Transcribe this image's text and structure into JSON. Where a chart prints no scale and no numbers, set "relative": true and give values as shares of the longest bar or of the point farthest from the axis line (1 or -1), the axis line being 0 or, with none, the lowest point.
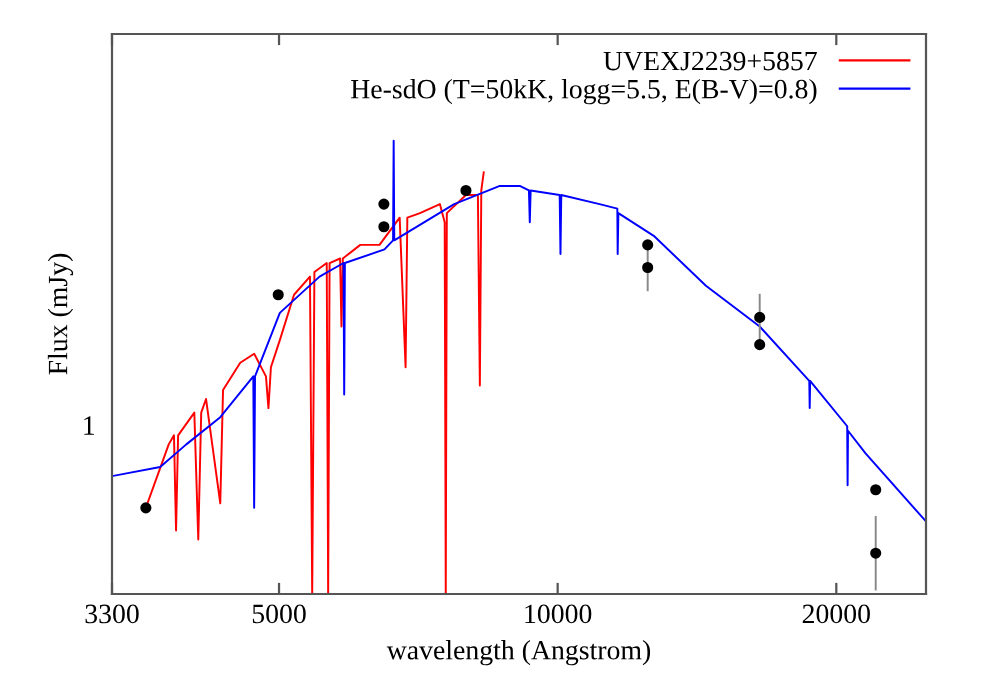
{
  "chart_data": {
    "type": "line",
    "xlabel": "wavelength (Angstrom)",
    "ylabel": "Flux (mJy)",
    "log": "x",
    "relative": true,
    "grid": false,
    "legend": "top right",
    "annotations": [
      "1"
    ],
    "xlim": [
      3300,
      25000
    ],
    "xticks": [
      3300,
      5000,
      10000,
      20000
    ],
    "series": [
      {
        "name": "UVEXJ2239+5857",
        "color": "#ff0000",
        "x": [
          3590,
          3800,
          3850,
          3870,
          3890,
          4050,
          4090,
          4120,
          4170,
          4320,
          4350,
          4540,
          4700,
          4840,
          4870,
          4900,
          5010,
          5190,
          5400,
          5430,
          5460,
          5630,
          5650,
          5670,
          5820,
          5840,
          5860,
          6120,
          6420,
          6750,
          6850,
          6880,
          7100,
          7460,
          7550,
          7570,
          7590,
          7960,
          8200,
          8240,
          8270,
          8320
        ],
        "values": [
          0.19,
          0.33,
          0.35,
          0.14,
          0.35,
          0.4,
          0.12,
          0.4,
          0.43,
          0.2,
          0.45,
          0.51,
          0.53,
          0.48,
          0.41,
          0.5,
          0.56,
          0.66,
          0.7,
          0.0,
          0.71,
          0.73,
          0.0,
          0.73,
          0.74,
          0.59,
          0.74,
          0.77,
          0.77,
          0.83,
          0.5,
          0.83,
          0.84,
          0.86,
          0.82,
          0.0,
          0.84,
          0.88,
          0.88,
          0.46,
          0.89,
          0.93
        ]
      },
      {
        "name": "He-sdO (T=50kK, logg=5.5, E(B-V)=0.8)",
        "color": "#0000ff",
        "x": [
          3300,
          3720,
          3970,
          4320,
          4690,
          4700,
          4710,
          5010,
          5530,
          5870,
          5880,
          5890,
          6500,
          6640,
          6650,
          6660,
          7730,
          8660,
          9100,
          9310,
          9330,
          9350,
          10050,
          10070,
          10090,
          11100,
          11600,
          11610,
          11630,
          12700,
          14460,
          16530,
          18700,
          18720,
          18740,
          18910,
          20550,
          20570,
          20590,
          21510,
          25000
        ],
        "values": [
          0.26,
          0.28,
          0.33,
          0.39,
          0.48,
          0.19,
          0.48,
          0.62,
          0.7,
          0.73,
          0.44,
          0.73,
          0.76,
          0.78,
          1.0,
          0.78,
          0.86,
          0.9,
          0.9,
          0.89,
          0.82,
          0.89,
          0.88,
          0.75,
          0.88,
          0.86,
          0.85,
          0.75,
          0.84,
          0.79,
          0.68,
          0.59,
          0.47,
          0.41,
          0.47,
          0.46,
          0.37,
          0.24,
          0.36,
          0.31,
          0.16
        ]
      },
      {
        "type": "scatter",
        "color": "#000000",
        "marker": "circle",
        "x": [
          3590,
          4990,
          6490,
          6490,
          7960,
          12510,
          12510,
          16530,
          16530,
          22060,
          22060
        ],
        "values": [
          0.19,
          0.66,
          0.86,
          0.81,
          0.89,
          0.77,
          0.72,
          0.61,
          0.55,
          0.23,
          0.09
        ]
      },
      {
        "type": "line",
        "color": "#888888",
        "x": [
          12510,
          12510
        ],
        "values": [
          0.67,
          0.77
        ]
      },
      {
        "type": "line",
        "color": "#888888",
        "x": [
          16530,
          16530
        ],
        "values": [
          0.56,
          0.66
        ]
      },
      {
        "type": "line",
        "color": "#888888",
        "x": [
          22060,
          22060
        ],
        "values": [
          0.01,
          0.17
        ]
      }
    ]
  }
}
